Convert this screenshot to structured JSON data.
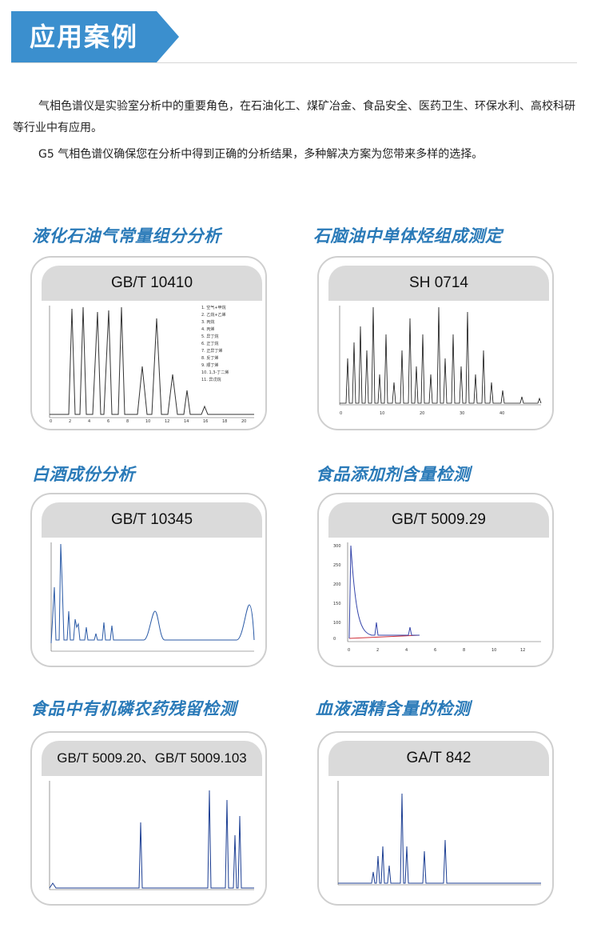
{
  "header": {
    "title": "应用案例",
    "accent": "#3b8fce"
  },
  "intro": {
    "p1": "气相色谱仪是实验室分析中的重要角色，在石油化工、煤矿冶金、食品安全、医药卫生、环保水利、高校科研等行业中有应用。",
    "p2": "G5 气相色谱仪确保您在分析中得到正确的分析结果，多种解决方案为您带来多样的选择。"
  },
  "cases": [
    {
      "title": "液化石油气常量组分分析",
      "standard": "GB/T 10410",
      "trace_color": "#333333",
      "legend": [
        "1. 空气+甲烷",
        "2. 乙烷+乙烯",
        "3. 丙烷",
        "4. 丙烯",
        "5. 异丁烷",
        "6. 正丁烷",
        "7. 正异丁烯",
        "8. 反丁烯",
        "9. 顺丁烯",
        "10. 1,3-丁二烯",
        "11. 异戊烷"
      ]
    },
    {
      "title": "石脑油中单体烃组成测定",
      "standard": "SH 0714",
      "trace_color": "#111111"
    },
    {
      "title": "白酒成份分析",
      "standard": "GB/T 10345",
      "trace_color": "#2a5aa6"
    },
    {
      "title": "食品添加剂含量检测",
      "standard": "GB/T 5009.29",
      "trace_color": "#3444aa",
      "baseline_color": "#d0303a"
    },
    {
      "title": "食品中有机磷农药残留检测",
      "standard": "GB/T 5009.20、GB/T 5009.103",
      "trace_color": "#1d3f93"
    },
    {
      "title": "血液酒精含量的检测",
      "standard": "GA/T 842",
      "trace_color": "#1d3f93"
    }
  ]
}
